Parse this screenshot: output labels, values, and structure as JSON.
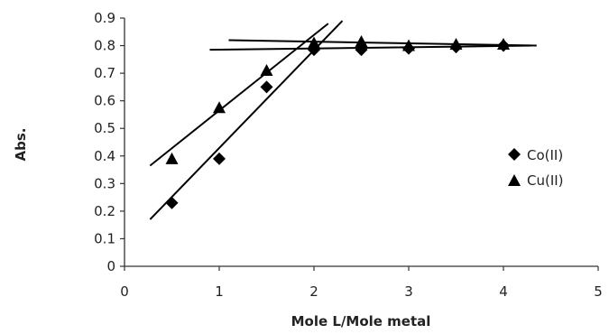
{
  "chart_data": {
    "type": "scatter",
    "xlabel": "Mole L/Mole metal",
    "ylabel": "Abs.",
    "xlim": [
      0,
      5
    ],
    "ylim": [
      0,
      0.9
    ],
    "x_ticks": [
      "0",
      "1",
      "2",
      "3",
      "4",
      "5"
    ],
    "y_ticks": [
      "0",
      "0.1",
      "0.2",
      "0.3",
      "0.4",
      "0.5",
      "0.6",
      "0.7",
      "0.8",
      "0.9"
    ],
    "grid": false,
    "legend_position": "right",
    "series": [
      {
        "name": "Co(II)",
        "marker": "diamond",
        "color": "#000000",
        "points": [
          [
            0.5,
            0.23
          ],
          [
            1.0,
            0.39
          ],
          [
            1.5,
            0.65
          ],
          [
            2.0,
            0.785
          ],
          [
            2.5,
            0.785
          ],
          [
            3.0,
            0.79
          ],
          [
            3.5,
            0.795
          ],
          [
            4.0,
            0.8
          ]
        ],
        "trendlines": [
          {
            "from": [
              0.27,
              0.17
            ],
            "to": [
              2.3,
              0.89
            ]
          },
          {
            "from": [
              0.9,
              0.785
            ],
            "to": [
              4.3,
              0.8
            ]
          }
        ]
      },
      {
        "name": "Cu(II)",
        "marker": "triangle",
        "color": "#000000",
        "points": [
          [
            0.5,
            0.39
          ],
          [
            1.0,
            0.575
          ],
          [
            1.5,
            0.71
          ],
          [
            2.0,
            0.81
          ],
          [
            2.5,
            0.815
          ],
          [
            3.0,
            0.8
          ],
          [
            3.5,
            0.805
          ],
          [
            4.0,
            0.805
          ]
        ],
        "trendlines": [
          {
            "from": [
              0.27,
              0.365
            ],
            "to": [
              2.15,
              0.88
            ]
          },
          {
            "from": [
              1.1,
              0.82
            ],
            "to": [
              4.35,
              0.8
            ]
          }
        ]
      }
    ]
  }
}
